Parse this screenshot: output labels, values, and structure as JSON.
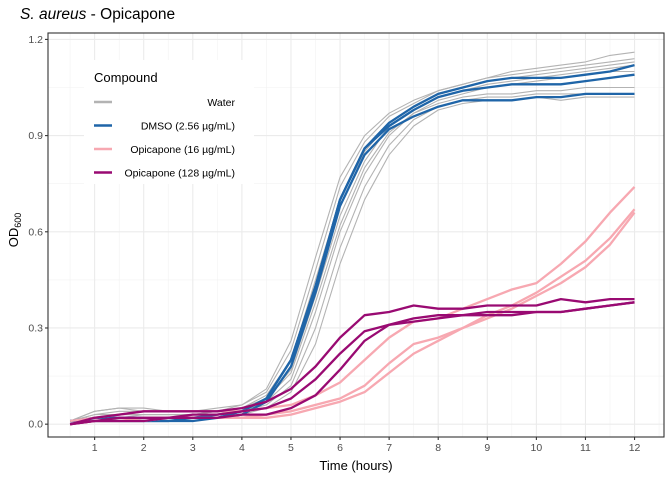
{
  "chart_data": {
    "type": "line",
    "title_italic": "S. aureus",
    "title_rest": " - Opicapone",
    "xlabel": "Time (hours)",
    "ylabel_main": "OD",
    "ylabel_sub": "600",
    "xlim": [
      0.05,
      12.6
    ],
    "ylim": [
      -0.04,
      1.22
    ],
    "xticks": [
      1,
      2,
      3,
      4,
      5,
      6,
      7,
      8,
      9,
      10,
      11,
      12
    ],
    "yticks": [
      0.0,
      0.3,
      0.6,
      0.9,
      1.2
    ],
    "ytick_labels": [
      "0.0",
      "0.3",
      "0.6",
      "0.9",
      "1.2"
    ],
    "grid": true,
    "legend": {
      "title": "Compound",
      "position": "top-left",
      "entries": [
        {
          "name": "Water",
          "color": "#b3b3b3"
        },
        {
          "name": "DMSO (2.56 µg/mL)",
          "color": "#1f65a8"
        },
        {
          "name": "Opicapone (16 µg/mL)",
          "color": "#f7a8b1"
        },
        {
          "name": "Opicapone (128 µg/mL)",
          "color": "#990a72"
        }
      ]
    },
    "x": [
      0.5,
      1,
      1.5,
      2,
      2.5,
      3,
      3.5,
      4,
      4.5,
      5,
      5.5,
      6,
      6.5,
      7,
      7.5,
      8,
      8.5,
      9,
      9.5,
      10,
      10.5,
      11,
      11.5,
      12
    ],
    "series": [
      {
        "name": "Water",
        "values": [
          0.01,
          0.04,
          0.05,
          0.04,
          0.04,
          0.04,
          0.04,
          0.05,
          0.09,
          0.2,
          0.45,
          0.7,
          0.85,
          0.94,
          0.99,
          1.03,
          1.05,
          1.07,
          1.08,
          1.09,
          1.1,
          1.11,
          1.12,
          1.13
        ]
      },
      {
        "name": "Water",
        "values": [
          0.01,
          0.03,
          0.04,
          0.04,
          0.04,
          0.04,
          0.05,
          0.06,
          0.1,
          0.23,
          0.48,
          0.74,
          0.88,
          0.96,
          1.0,
          1.04,
          1.06,
          1.08,
          1.09,
          1.1,
          1.11,
          1.12,
          1.13,
          1.14
        ]
      },
      {
        "name": "Water",
        "values": [
          0.01,
          0.03,
          0.03,
          0.03,
          0.03,
          0.03,
          0.04,
          0.05,
          0.08,
          0.17,
          0.4,
          0.65,
          0.82,
          0.93,
          0.98,
          1.02,
          1.04,
          1.06,
          1.07,
          1.08,
          1.09,
          1.1,
          1.11,
          1.12
        ]
      },
      {
        "name": "Water",
        "values": [
          0.01,
          0.02,
          0.02,
          0.03,
          0.03,
          0.03,
          0.03,
          0.04,
          0.07,
          0.14,
          0.35,
          0.6,
          0.78,
          0.9,
          0.97,
          1.0,
          1.02,
          1.03,
          1.03,
          1.04,
          1.04,
          1.05,
          1.05,
          1.05
        ]
      },
      {
        "name": "Water",
        "values": [
          0.01,
          0.02,
          0.02,
          0.02,
          0.02,
          0.02,
          0.03,
          0.04,
          0.06,
          0.12,
          0.3,
          0.55,
          0.74,
          0.87,
          0.95,
          0.99,
          1.01,
          1.02,
          1.02,
          1.03,
          1.03,
          1.03,
          1.03,
          1.03
        ]
      },
      {
        "name": "Water",
        "values": [
          0.01,
          0.01,
          0.01,
          0.01,
          0.01,
          0.01,
          0.02,
          0.03,
          0.05,
          0.1,
          0.25,
          0.5,
          0.7,
          0.84,
          0.93,
          0.98,
          1.0,
          1.01,
          1.01,
          1.02,
          1.01,
          1.02,
          1.02,
          1.02
        ]
      },
      {
        "name": "Water",
        "values": [
          0.01,
          0.04,
          0.05,
          0.05,
          0.04,
          0.04,
          0.04,
          0.06,
          0.11,
          0.26,
          0.52,
          0.77,
          0.9,
          0.97,
          1.01,
          1.04,
          1.06,
          1.08,
          1.1,
          1.11,
          1.12,
          1.13,
          1.15,
          1.16
        ]
      },
      {
        "name": "Water",
        "values": [
          0.01,
          0.02,
          0.03,
          0.03,
          0.03,
          0.03,
          0.04,
          0.05,
          0.08,
          0.16,
          0.38,
          0.62,
          0.8,
          0.91,
          0.97,
          1.01,
          1.03,
          1.05,
          1.06,
          1.07,
          1.08,
          1.09,
          1.1,
          1.1
        ]
      },
      {
        "name": "DMSO (2.56 µg/mL)",
        "values": [
          0.01,
          0.02,
          0.02,
          0.02,
          0.02,
          0.02,
          0.03,
          0.04,
          0.08,
          0.2,
          0.43,
          0.7,
          0.86,
          0.94,
          0.99,
          1.03,
          1.05,
          1.07,
          1.08,
          1.08,
          1.08,
          1.09,
          1.1,
          1.12
        ]
      },
      {
        "name": "DMSO (2.56 µg/mL)",
        "values": [
          0.01,
          0.01,
          0.01,
          0.01,
          0.01,
          0.02,
          0.02,
          0.04,
          0.08,
          0.2,
          0.43,
          0.7,
          0.86,
          0.93,
          0.98,
          1.02,
          1.04,
          1.05,
          1.06,
          1.06,
          1.06,
          1.07,
          1.08,
          1.09
        ]
      },
      {
        "name": "DMSO (2.56 µg/mL)",
        "values": [
          0.01,
          0.01,
          0.01,
          0.01,
          0.01,
          0.01,
          0.02,
          0.03,
          0.07,
          0.18,
          0.41,
          0.68,
          0.84,
          0.92,
          0.96,
          0.99,
          1.01,
          1.01,
          1.01,
          1.02,
          1.02,
          1.03,
          1.03,
          1.03
        ]
      },
      {
        "name": "Opicapone (16 µg/mL)",
        "values": [
          0.01,
          0.02,
          0.03,
          0.04,
          0.04,
          0.04,
          0.04,
          0.04,
          0.05,
          0.06,
          0.09,
          0.13,
          0.2,
          0.27,
          0.32,
          0.33,
          0.36,
          0.39,
          0.42,
          0.44,
          0.5,
          0.57,
          0.66,
          0.74
        ]
      },
      {
        "name": "Opicapone (16 µg/mL)",
        "values": [
          0.0,
          0.01,
          0.01,
          0.02,
          0.02,
          0.02,
          0.02,
          0.02,
          0.03,
          0.04,
          0.06,
          0.08,
          0.12,
          0.19,
          0.25,
          0.27,
          0.3,
          0.33,
          0.36,
          0.4,
          0.44,
          0.49,
          0.56,
          0.66
        ]
      },
      {
        "name": "Opicapone (16 µg/mL)",
        "values": [
          0.0,
          0.01,
          0.01,
          0.01,
          0.02,
          0.02,
          0.02,
          0.02,
          0.02,
          0.03,
          0.05,
          0.07,
          0.1,
          0.16,
          0.22,
          0.26,
          0.3,
          0.34,
          0.37,
          0.41,
          0.46,
          0.51,
          0.58,
          0.67
        ]
      },
      {
        "name": "Opicapone (128 µg/mL)",
        "values": [
          0.0,
          0.02,
          0.03,
          0.04,
          0.04,
          0.04,
          0.04,
          0.05,
          0.07,
          0.11,
          0.18,
          0.27,
          0.34,
          0.35,
          0.37,
          0.36,
          0.36,
          0.37,
          0.37,
          0.37,
          0.39,
          0.38,
          0.39,
          0.39
        ]
      },
      {
        "name": "Opicapone (128 µg/mL)",
        "values": [
          0.0,
          0.01,
          0.02,
          0.02,
          0.02,
          0.03,
          0.03,
          0.04,
          0.05,
          0.08,
          0.14,
          0.22,
          0.29,
          0.31,
          0.32,
          0.33,
          0.34,
          0.34,
          0.34,
          0.35,
          0.35,
          0.36,
          0.37,
          0.38
        ]
      },
      {
        "name": "Opicapone (128 µg/mL)",
        "values": [
          0.0,
          0.01,
          0.01,
          0.01,
          0.02,
          0.02,
          0.02,
          0.03,
          0.03,
          0.05,
          0.09,
          0.17,
          0.26,
          0.31,
          0.33,
          0.34,
          0.34,
          0.35,
          0.35,
          0.35,
          0.35,
          0.36,
          0.37,
          0.38
        ]
      }
    ]
  }
}
